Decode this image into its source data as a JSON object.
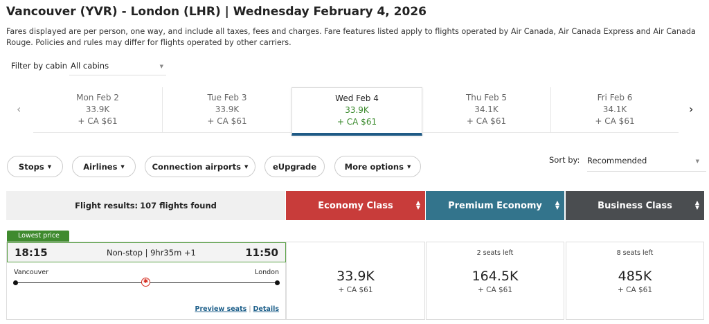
{
  "title": "Vancouver (YVR) - London (LHR)  |  Wednesday February 4, 2026",
  "note": "Fares displayed are per person, one way, and include all taxes, fees and charges. Fare features listed apply to flights operated by Air Canada, Air Canada Express and Air Canada Rouge. Policies and rules may differ for flights operated by other carriers.",
  "cabin_filter": {
    "label": "Filter by cabin",
    "value": "All cabins"
  },
  "dates": [
    {
      "day": "Mon Feb 2",
      "points": "33.9K",
      "cash": "+ CA $61"
    },
    {
      "day": "Tue Feb 3",
      "points": "33.9K",
      "cash": "+ CA $61"
    },
    {
      "day": "Wed Feb 4",
      "points": "33.9K",
      "cash": "+ CA $61",
      "selected": true
    },
    {
      "day": "Thu Feb 5",
      "points": "34.1K",
      "cash": "+ CA $61"
    },
    {
      "day": "Fri Feb 6",
      "points": "34.1K",
      "cash": "+ CA $61"
    }
  ],
  "filters": [
    "Stops",
    "Airlines",
    "Connection airports",
    "eUpgrade",
    "More options"
  ],
  "sort": {
    "label": "Sort by:",
    "value": "Recommended"
  },
  "results": {
    "label": "Flight results:",
    "count": "107 flights found"
  },
  "cabins": [
    {
      "name": "Economy Class",
      "color": "#c83c3a"
    },
    {
      "name": "Premium Economy",
      "color": "#33748c"
    },
    {
      "name": "Business Class",
      "color": "#4a4d50"
    }
  ],
  "flight": {
    "badge": "Lowest price",
    "depart": "18:15",
    "arrive": "11:50",
    "info": "Non-stop | 9hr35m +1",
    "origin": "Vancouver",
    "destination": "London",
    "preview": "Preview seats",
    "sep": "|",
    "details": "Details",
    "fares": [
      {
        "seats": "",
        "points": "33.9K",
        "cash": "+ CA $61"
      },
      {
        "seats": "2 seats left",
        "points": "164.5K",
        "cash": "+ CA $61"
      },
      {
        "seats": "8 seats left",
        "points": "485K",
        "cash": "+ CA $61"
      }
    ]
  }
}
